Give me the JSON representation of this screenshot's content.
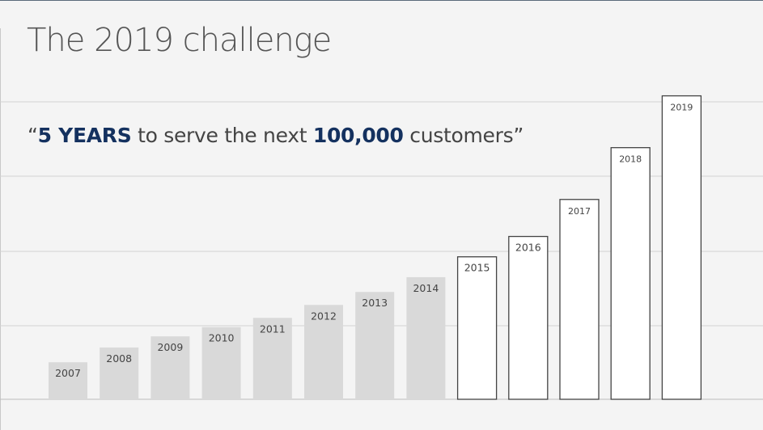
{
  "slide": {
    "title": "The 2019 challenge",
    "quote": {
      "open": "“",
      "bold1": "5 YEARS",
      "mid": " to serve the next ",
      "bold2": "100,000",
      "end": " customers”"
    }
  },
  "chart_data": {
    "type": "bar",
    "title": "",
    "xlabel": "",
    "ylabel": "",
    "categories": [
      "2007",
      "2008",
      "2009",
      "2010",
      "2011",
      "2012",
      "2013",
      "2014",
      "2015",
      "2016",
      "2017",
      "2018",
      "2019"
    ],
    "values": [
      1.0,
      1.4,
      1.7,
      1.95,
      2.2,
      2.55,
      2.9,
      3.3,
      3.85,
      4.4,
      5.4,
      6.8,
      8.2
    ],
    "ylim": [
      0,
      8.3
    ],
    "grid": true,
    "series_styles": [
      {
        "years": "2007-2014",
        "fill": "#d9d9d9",
        "stroke": "none",
        "label": "historical"
      },
      {
        "years": "2015-2019",
        "fill": "#ffffff",
        "stroke": "#444444",
        "label": "target"
      }
    ],
    "colors": {
      "historical": "#d9d9d9",
      "target": "#ffffff",
      "target_border": "#444444",
      "grid": "#d2d2d2",
      "baseline": "#bdbdbd"
    }
  }
}
